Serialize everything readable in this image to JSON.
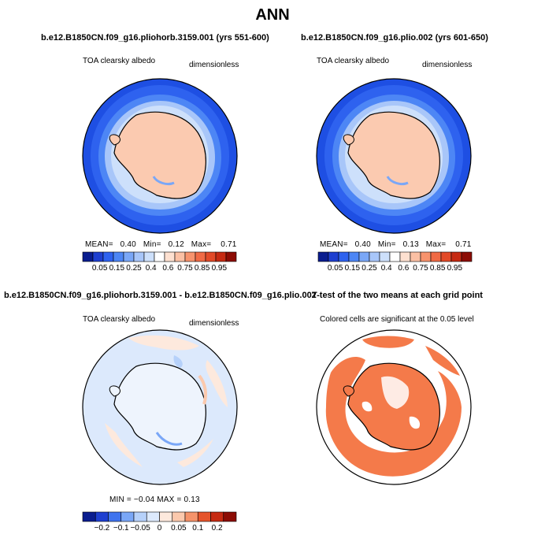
{
  "figure_title": "ANN",
  "panels": [
    {
      "title": "b.e12.B1850CN.f09_g16.pliohorb.3159.001 (yrs 551-600)",
      "variable": "TOA clearsky albedo",
      "units": "dimensionless",
      "stats": {
        "mean_label": "MEAN=",
        "mean": "0.40",
        "min_label": "Min=",
        "min": "0.12",
        "max_label": "Max=",
        "max": "0.71"
      }
    },
    {
      "title": "b.e12.B1850CN.f09_g16.plio.002 (yrs 601-650)",
      "variable": "TOA clearsky albedo",
      "units": "dimensionless",
      "stats": {
        "mean_label": "MEAN=",
        "mean": "0.40",
        "min_label": "Min=",
        "min": "0.13",
        "max_label": "Max=",
        "max": "0.71"
      }
    },
    {
      "title": "b.e12.B1850CN.f09_g16.pliohorb.3159.001 - b.e12.B1850CN.f09_g16.plio.002",
      "variable": "TOA clearsky albedo",
      "units": "dimensionless",
      "stats_text": "MIN =  −0.04  MAX =   0.13"
    },
    {
      "title": "T-test of the two means at each grid point",
      "subtitle": "Colored cells are significant at the 0.05 level"
    }
  ],
  "colorbars": {
    "abs": {
      "labels": [
        "0.05",
        "0.15",
        "0.25",
        "0.4",
        "0.6",
        "0.75",
        "0.85",
        "0.95"
      ],
      "colors": [
        "#0a1d8f",
        "#1e3fd0",
        "#2e62ef",
        "#4d86f5",
        "#7aa7f7",
        "#a8c6f9",
        "#cde0fb",
        "#ffffff",
        "#fde0d0",
        "#fbc0a4",
        "#f7936d",
        "#f06a45",
        "#e24a28",
        "#c62a12",
        "#8c0c04"
      ]
    },
    "diff": {
      "labels": [
        "−0.2",
        "−0.1",
        "−0.05",
        "0",
        "0.05",
        "0.1",
        "0.2"
      ],
      "colors": [
        "#0a1d8f",
        "#1e3fd0",
        "#3f73ee",
        "#7aa7f7",
        "#b6d1fa",
        "#dce9fc",
        "#fde9dd",
        "#fbc9ad",
        "#f5936a",
        "#e5542b",
        "#c62a12",
        "#8c0c04"
      ]
    }
  },
  "colors": {
    "ttest_fill": "#f47a4a",
    "land_fill": "#fbcab0"
  }
}
